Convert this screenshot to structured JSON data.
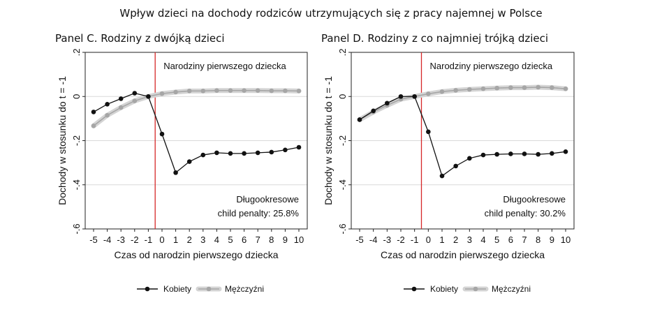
{
  "title": "Wpływ dzieci na dochody rodziców utrzymujących się z pracy najemnej w Polsce",
  "legend": [
    {
      "label": "Kobiety",
      "color": "#111111"
    },
    {
      "label": "Mężczyźni",
      "color": "#a6a6a6"
    }
  ],
  "colors": {
    "event_line": "#d62728",
    "women": "#111111",
    "men": "#a6a6a6",
    "ci_band": "#d4d4d4",
    "grid": "#d9d9d9"
  },
  "chart_data": [
    {
      "type": "line",
      "title": "Panel C. Rodziny z dwójką dzieci",
      "xlabel": "Czas od narodzin pierwszego dziecka",
      "ylabel": "Dochody w stosunku do t = -1",
      "xlim": [
        -5,
        10
      ],
      "ylim": [
        -0.6,
        0.2
      ],
      "x_ticks": [
        "-5",
        "-4",
        "-3",
        "-2",
        "-1",
        "0",
        "1",
        "2",
        "3",
        "4",
        "5",
        "6",
        "7",
        "8",
        "9",
        "10"
      ],
      "y_ticks": [
        ".2",
        "0",
        "-.2",
        "-.4",
        "-.6"
      ],
      "event_label": "Narodziny pierwszego dziecka",
      "annotation_line1": "Długookresowe",
      "annotation_line2": "child penalty: 25.8%",
      "x": [
        -5,
        -4,
        -3,
        -2,
        -1,
        0,
        1,
        2,
        3,
        4,
        5,
        6,
        7,
        8,
        9,
        10
      ],
      "series": [
        {
          "name": "Kobiety",
          "values": [
            -0.07,
            -0.035,
            -0.01,
            0.015,
            0,
            -0.17,
            -0.345,
            -0.295,
            -0.265,
            -0.255,
            -0.258,
            -0.258,
            -0.255,
            -0.252,
            -0.242,
            -0.23
          ]
        },
        {
          "name": "Mężczyźni",
          "values": [
            -0.133,
            -0.085,
            -0.05,
            -0.02,
            0,
            0.013,
            0.02,
            0.025,
            0.025,
            0.027,
            0.027,
            0.027,
            0.027,
            0.026,
            0.026,
            0.025
          ]
        }
      ]
    },
    {
      "type": "line",
      "title": "Panel D. Rodziny z co najmniej trójką dzieci",
      "xlabel": "Czas od narodzin pierwszego dziecka",
      "ylabel": "Dochody w stosunku do t = -1",
      "xlim": [
        -5,
        10
      ],
      "ylim": [
        -0.6,
        0.2
      ],
      "x_ticks": [
        "-5",
        "-4",
        "-3",
        "-2",
        "-1",
        "0",
        "1",
        "2",
        "3",
        "4",
        "5",
        "6",
        "7",
        "8",
        "9",
        "10"
      ],
      "y_ticks": [
        ".2",
        "0",
        "-.2",
        "-.4",
        "-.6"
      ],
      "event_label": "Narodziny pierwszego dziecka",
      "annotation_line1": "Długookresowe",
      "annotation_line2": "child penalty: 30.2%",
      "x": [
        -5,
        -4,
        -3,
        -2,
        -1,
        0,
        1,
        2,
        3,
        4,
        5,
        6,
        7,
        8,
        9,
        10
      ],
      "series": [
        {
          "name": "Kobiety",
          "values": [
            -0.105,
            -0.065,
            -0.03,
            0,
            0,
            -0.16,
            -0.36,
            -0.315,
            -0.28,
            -0.265,
            -0.262,
            -0.26,
            -0.26,
            -0.262,
            -0.258,
            -0.25
          ]
        },
        {
          "name": "Mężczyźni",
          "values": [
            -0.105,
            -0.07,
            -0.04,
            -0.012,
            0,
            0.012,
            0.022,
            0.028,
            0.032,
            0.035,
            0.038,
            0.04,
            0.04,
            0.042,
            0.04,
            0.035
          ]
        }
      ]
    }
  ]
}
